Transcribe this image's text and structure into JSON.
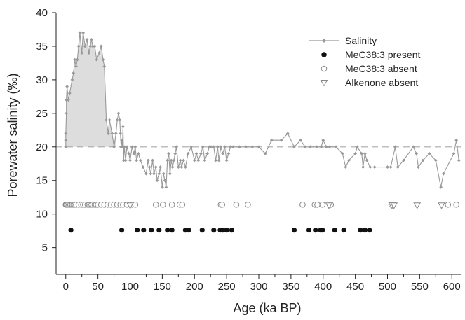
{
  "chart_data": {
    "type": "scatter",
    "xlabel": "Age (ka BP)",
    "ylabel": "Porewater salinity (‰)",
    "xlim": [
      -15,
      615
    ],
    "ylim": [
      1,
      40
    ],
    "xticks": [
      0,
      50,
      100,
      150,
      200,
      250,
      300,
      350,
      400,
      450,
      500,
      550,
      600
    ],
    "yticks": [
      5,
      10,
      15,
      20,
      25,
      30,
      35,
      40
    ],
    "reference_line": {
      "y": 20,
      "style": "dashed",
      "color": "#aaaaaa"
    },
    "shaded_region": {
      "between": "Salinity and y=20",
      "x_range": [
        0,
        78
      ],
      "color": "#dddddd"
    },
    "legend_position": "top-right",
    "legend": [
      {
        "key": "salinity",
        "label": "Salinity"
      },
      {
        "key": "present",
        "label": "MeC38:3 present"
      },
      {
        "key": "absent",
        "label": "MeC38:3 absent"
      },
      {
        "key": "alkenone",
        "label": "Alkenone absent"
      }
    ],
    "colors": {
      "salinity": "#999999",
      "present": "#111111",
      "absent": "#888888",
      "alkenone": "#888888",
      "shade": "#dddddd"
    },
    "series": [
      {
        "name": "Salinity",
        "marker": "diamond",
        "points": [
          [
            0,
            20
          ],
          [
            0,
            21
          ],
          [
            0,
            22
          ],
          [
            1,
            25
          ],
          [
            1,
            27
          ],
          [
            2,
            29
          ],
          [
            4,
            27
          ],
          [
            6,
            28
          ],
          [
            10,
            30
          ],
          [
            12,
            31
          ],
          [
            14,
            33
          ],
          [
            16,
            32
          ],
          [
            18,
            33
          ],
          [
            20,
            35
          ],
          [
            22,
            37
          ],
          [
            25,
            34
          ],
          [
            27,
            37
          ],
          [
            30,
            35
          ],
          [
            33,
            36
          ],
          [
            36,
            34
          ],
          [
            38,
            35
          ],
          [
            40,
            36
          ],
          [
            42,
            35
          ],
          [
            45,
            35
          ],
          [
            48,
            33
          ],
          [
            52,
            34
          ],
          [
            55,
            35
          ],
          [
            58,
            33
          ],
          [
            60,
            32
          ],
          [
            63,
            24
          ],
          [
            66,
            22
          ],
          [
            68,
            24
          ],
          [
            72,
            22
          ],
          [
            75,
            20
          ],
          [
            78,
            22
          ],
          [
            80,
            24
          ],
          [
            82,
            25
          ],
          [
            84,
            24
          ],
          [
            85,
            22
          ],
          [
            86,
            20
          ],
          [
            87,
            21
          ],
          [
            88,
            20
          ],
          [
            89,
            23
          ],
          [
            90,
            18
          ],
          [
            91,
            20
          ],
          [
            93,
            18
          ],
          [
            95,
            20
          ],
          [
            98,
            19
          ],
          [
            100,
            18
          ],
          [
            103,
            20
          ],
          [
            106,
            19
          ],
          [
            108,
            20
          ],
          [
            110,
            18
          ],
          [
            113,
            19
          ],
          [
            116,
            18
          ],
          [
            120,
            17
          ],
          [
            125,
            16
          ],
          [
            128,
            18
          ],
          [
            130,
            17
          ],
          [
            132,
            16
          ],
          [
            135,
            18
          ],
          [
            137,
            16
          ],
          [
            140,
            17
          ],
          [
            142,
            15
          ],
          [
            145,
            16
          ],
          [
            147,
            17
          ],
          [
            150,
            14
          ],
          [
            152,
            16
          ],
          [
            154,
            15
          ],
          [
            156,
            14
          ],
          [
            158,
            18
          ],
          [
            160,
            19
          ],
          [
            162,
            16
          ],
          [
            164,
            18
          ],
          [
            166,
            17
          ],
          [
            168,
            18
          ],
          [
            170,
            19
          ],
          [
            172,
            20
          ],
          [
            175,
            17
          ],
          [
            178,
            18
          ],
          [
            180,
            17
          ],
          [
            183,
            18
          ],
          [
            186,
            17
          ],
          [
            190,
            19
          ],
          [
            195,
            20
          ],
          [
            200,
            18
          ],
          [
            203,
            19
          ],
          [
            206,
            18
          ],
          [
            210,
            19
          ],
          [
            213,
            20
          ],
          [
            216,
            18
          ],
          [
            220,
            19
          ],
          [
            223,
            20
          ],
          [
            226,
            20
          ],
          [
            230,
            20
          ],
          [
            233,
            18
          ],
          [
            236,
            20
          ],
          [
            238,
            18
          ],
          [
            241,
            20
          ],
          [
            244,
            19
          ],
          [
            247,
            20
          ],
          [
            250,
            18
          ],
          [
            253,
            19
          ],
          [
            256,
            20
          ],
          [
            260,
            20
          ],
          [
            270,
            20
          ],
          [
            280,
            20
          ],
          [
            290,
            20
          ],
          [
            300,
            20
          ],
          [
            310,
            19
          ],
          [
            320,
            21
          ],
          [
            335,
            21
          ],
          [
            345,
            22
          ],
          [
            355,
            20
          ],
          [
            365,
            21
          ],
          [
            372,
            20
          ],
          [
            380,
            20
          ],
          [
            390,
            20
          ],
          [
            397,
            20
          ],
          [
            400,
            21
          ],
          [
            405,
            20
          ],
          [
            410,
            20
          ],
          [
            420,
            20
          ],
          [
            430,
            19
          ],
          [
            435,
            17
          ],
          [
            440,
            18
          ],
          [
            450,
            19
          ],
          [
            453,
            20
          ],
          [
            460,
            19
          ],
          [
            462,
            17
          ],
          [
            465,
            19
          ],
          [
            468,
            18
          ],
          [
            473,
            17
          ],
          [
            480,
            17
          ],
          [
            500,
            17
          ],
          [
            505,
            17
          ],
          [
            512,
            20
          ],
          [
            516,
            17
          ],
          [
            525,
            18
          ],
          [
            540,
            20
          ],
          [
            545,
            19
          ],
          [
            548,
            17
          ],
          [
            555,
            18
          ],
          [
            565,
            19
          ],
          [
            575,
            18
          ],
          [
            583,
            14
          ],
          [
            587,
            16
          ],
          [
            603,
            19
          ],
          [
            607,
            21
          ],
          [
            611,
            18
          ]
        ]
      },
      {
        "name": "MeC38:3 present",
        "marker": "filled-circle",
        "x": [
          8,
          87,
          111,
          121,
          133,
          145,
          158,
          165,
          186,
          191,
          212,
          230,
          240,
          244,
          250,
          258,
          355,
          378,
          388,
          396,
          399,
          418,
          432,
          458,
          465,
          472
        ],
        "y": 7.6
      },
      {
        "name": "MeC38:3 absent",
        "marker": "open-circle",
        "x": [
          0,
          1,
          3,
          5,
          7,
          9,
          10,
          12,
          14,
          16,
          20,
          24,
          27,
          30,
          34,
          36,
          38,
          40,
          42,
          45,
          47,
          50,
          55,
          60,
          65,
          70,
          75,
          80,
          85,
          89,
          95,
          103,
          108,
          140,
          151,
          165,
          177,
          181,
          241,
          243,
          265,
          283,
          368,
          387,
          391,
          399,
          412,
          506,
          509,
          594,
          607
        ],
        "y": 11.4
      },
      {
        "name": "Alkenone absent",
        "marker": "open-triangle-down",
        "x": [
          100,
          409,
          507,
          510,
          546,
          584
        ],
        "y": 11.3
      }
    ]
  }
}
